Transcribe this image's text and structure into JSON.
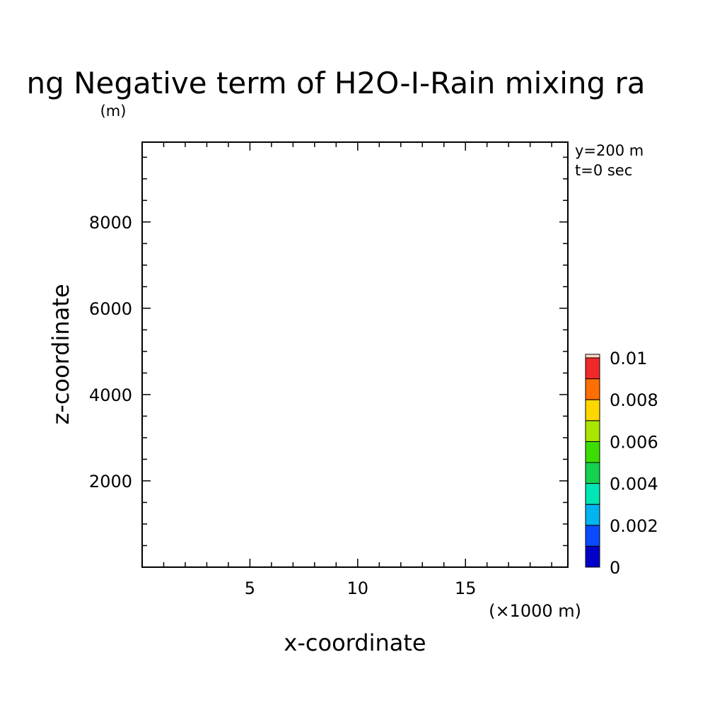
{
  "chart_data": {
    "type": "heatmap",
    "title": "ng Negative term of H2O-I-Rain mixing ra",
    "title_unit": "(m)",
    "xlabel": "x-coordinate",
    "ylabel": "z-coordinate",
    "x_unit_note": "(×1000 m)",
    "xlim": [
      0,
      19.75
    ],
    "ylim": [
      0,
      9850
    ],
    "x_ticks": [
      5,
      10,
      15
    ],
    "y_ticks": [
      2000,
      4000,
      6000,
      8000
    ],
    "x_tick_labels": [
      "5",
      "10",
      "15"
    ],
    "y_tick_labels": [
      "2000",
      "4000",
      "6000",
      "8000"
    ],
    "x_minor_step": 1,
    "y_minor_step": 500,
    "info_lines": [
      "y=200 m",
      "t=0 sec"
    ],
    "grid": false,
    "values": [],
    "colorbar": {
      "levels": [
        0,
        0.001,
        0.002,
        0.003,
        0.004,
        0.005,
        0.006,
        0.007,
        0.008,
        0.009,
        0.01
      ],
      "colors": [
        "#0000c8",
        "#0a4bff",
        "#00b4f0",
        "#00e6b4",
        "#14d250",
        "#3cdc00",
        "#aae600",
        "#ffd700",
        "#ff6e00",
        "#f02828"
      ],
      "tick_values": [
        0,
        0.002,
        0.004,
        0.006,
        0.008,
        0.01
      ],
      "tick_labels": [
        "0",
        "0.002",
        "0.004",
        "0.006",
        "0.008",
        "0.01"
      ]
    }
  }
}
